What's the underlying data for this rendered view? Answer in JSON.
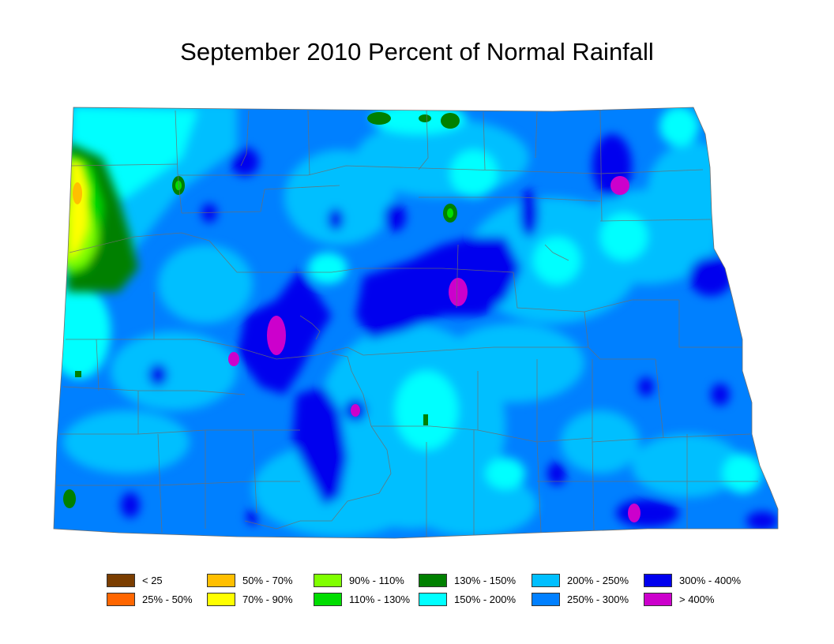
{
  "title": "September 2010 Percent of Normal Rainfall",
  "legend": [
    {
      "label": "< 25",
      "color": "#7a3d00"
    },
    {
      "label": "25% - 50%",
      "color": "#ff6600"
    },
    {
      "label": "50% - 70%",
      "color": "#ffbf00"
    },
    {
      "label": "70% - 90%",
      "color": "#ffff00"
    },
    {
      "label": "90% - 110%",
      "color": "#80ff00"
    },
    {
      "label": "110% - 130%",
      "color": "#00dd00"
    },
    {
      "label": "130% - 150%",
      "color": "#008000"
    },
    {
      "label": "150% - 200%",
      "color": "#00ffff"
    },
    {
      "label": "200% - 250%",
      "color": "#00bfff"
    },
    {
      "label": "250% - 300%",
      "color": "#0080ff"
    },
    {
      "label": "300% - 400%",
      "color": "#0000ee"
    },
    {
      "label": "> 400%",
      "color": "#cc00cc"
    }
  ]
}
